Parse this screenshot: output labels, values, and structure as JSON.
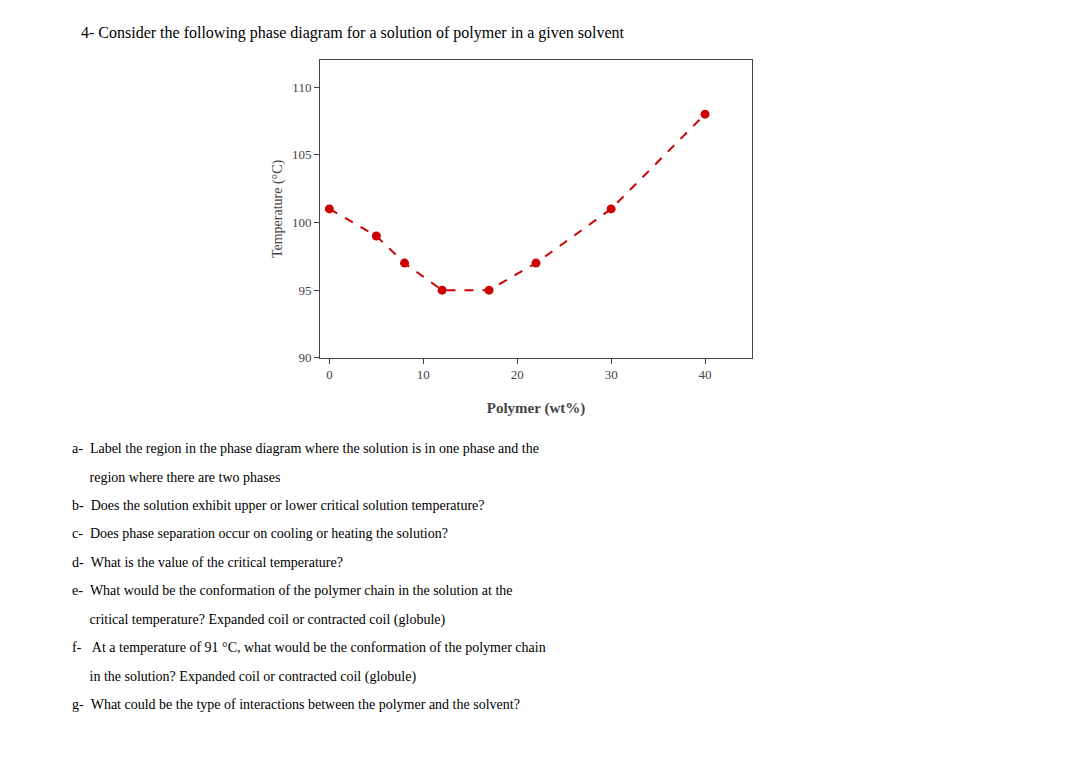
{
  "chart_data": {
    "type": "line",
    "title": "4- Consider the following phase diagram for a solution of polymer in a given solvent",
    "xlabel": "Polymer (wt%)",
    "ylabel": "Temperature (°C)",
    "x": [
      0,
      5,
      8,
      12,
      17,
      22,
      30,
      40
    ],
    "values": [
      101,
      99,
      97,
      95,
      95,
      97,
      101,
      108
    ],
    "color": "#cc0000",
    "line_style": "dashed",
    "marker": "circle",
    "xlim": [
      -1,
      45
    ],
    "ylim": [
      90,
      112
    ],
    "xticks": [
      0,
      10,
      20,
      30,
      40
    ],
    "yticks": [
      90,
      95,
      100,
      105,
      110
    ],
    "grid": false,
    "annotations": [
      "a-  Label the region in the phase diagram where the solution is in one phase and the",
      "     region where there are two phases",
      "b-  Does the solution exhibit upper or lower critical solution temperature?",
      "c-  Does phase separation occur on cooling or heating the solution?",
      "d-  What is the value of the critical temperature?",
      "e-  What would be the conformation of the polymer chain in the solution at the",
      "     critical temperature? Expanded coil or contracted coil (globule)",
      "f-   At a temperature of 91 °C, what would be the conformation of the polymer chain",
      "     in the solution? Expanded coil or contracted coil (globule)",
      "g-  What could be the type of interactions between the polymer and the solvent?"
    ]
  }
}
